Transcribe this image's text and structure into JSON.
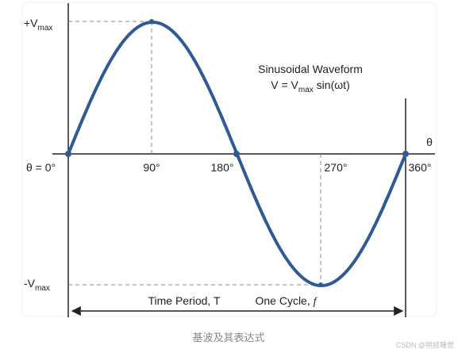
{
  "diagram": {
    "y_labels": {
      "positive": {
        "main": "+V",
        "sub": "max"
      },
      "negative": {
        "main": "-V",
        "sub": "max"
      }
    },
    "x_labels": [
      "θ = 0°",
      "90°",
      "180°",
      "270°",
      "360°"
    ],
    "axis_symbol": "θ",
    "title": "Sinusoidal Waveform",
    "formula": {
      "left": "V = V",
      "sub": "max",
      "right": " sin(ωt)"
    },
    "period_label": "Time Period, T",
    "cycle_label": {
      "text": "One Cycle, ",
      "symbol": "f"
    }
  },
  "caption": "基波及其表达式",
  "watermark": "CSDN @哄娃睡觉"
}
